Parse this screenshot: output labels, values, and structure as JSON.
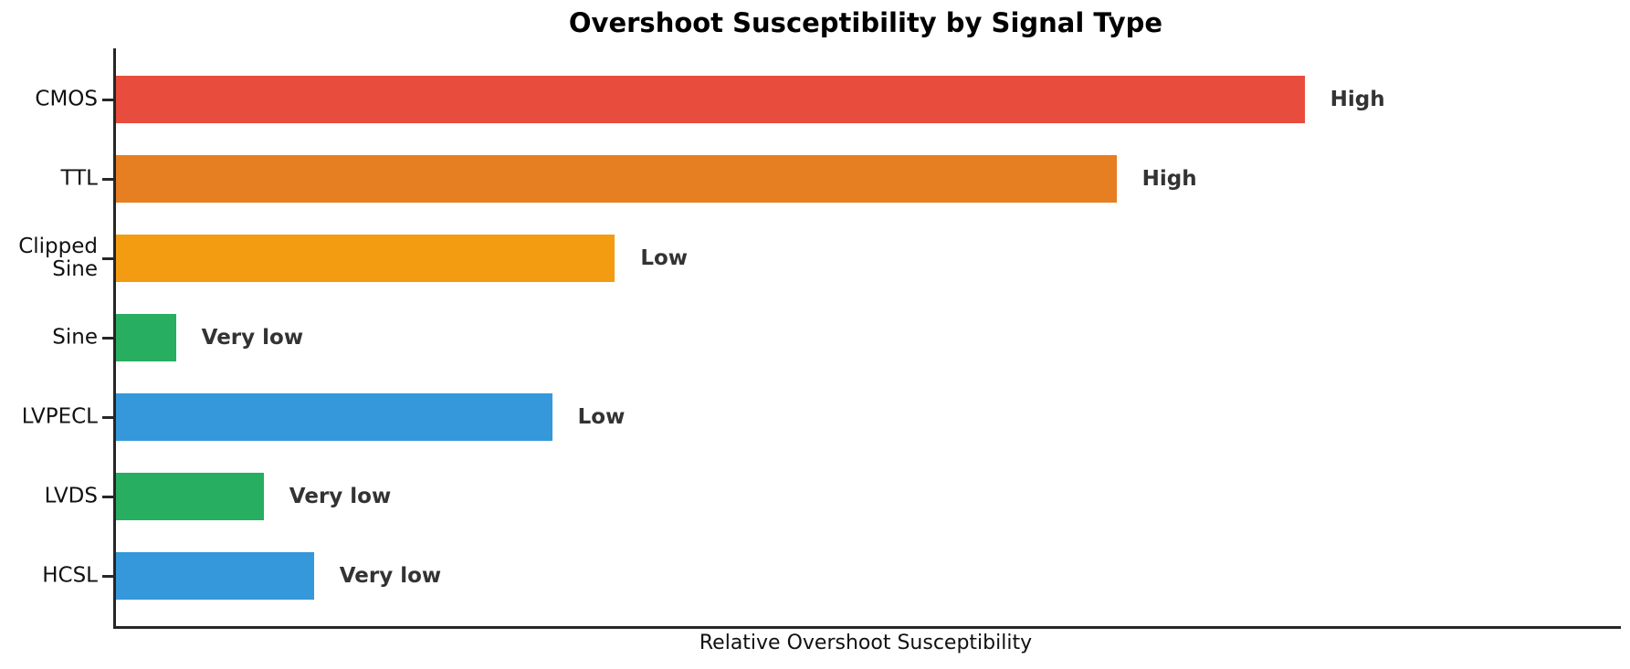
{
  "title": "Overshoot Susceptibility by Signal Type",
  "xlabel": "Relative Overshoot Susceptibility",
  "chart_data": {
    "type": "bar",
    "orientation": "horizontal",
    "title": "Overshoot Susceptibility by Signal Type",
    "xlabel": "Relative Overshoot Susceptibility",
    "ylabel": "",
    "categories": [
      "CMOS",
      "TTL",
      "Clipped\nSine",
      "Sine",
      "LVPECL",
      "LVDS",
      "HCSL"
    ],
    "values": [
      9.5,
      8,
      4,
      0.5,
      3.5,
      1.2,
      1.6
    ],
    "bar_labels": [
      "High",
      "High",
      "Low",
      "Very low",
      "Low",
      "Very low",
      "Very low"
    ],
    "bar_colors": [
      "#e74c3c",
      "#e67e22",
      "#f39c12",
      "#27ae60",
      "#3498db",
      "#27ae60",
      "#3498db"
    ],
    "xlim": [
      0,
      12
    ],
    "grid": false,
    "legend": "none",
    "axis_color": "#262626",
    "value_label_color": "#333333",
    "tick_label_color": "#111111"
  }
}
